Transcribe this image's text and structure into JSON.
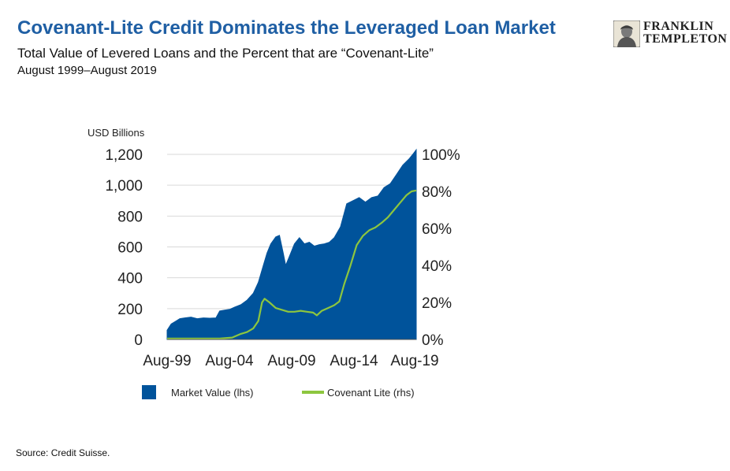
{
  "header": {
    "title": "Covenant-Lite Credit Dominates the Leveraged Loan Market",
    "subtitle": "Total Value of Levered Loans and the Percent that are “Covenant-Lite”",
    "date_range": "August 1999–August 2019"
  },
  "logo": {
    "line1": "FRANKLIN",
    "line2": "TEMPLETON",
    "icon": "franklin-portrait-icon"
  },
  "source": "Source: Credit Suisse.",
  "colors": {
    "market_value": "#00539b",
    "covenant_lite": "#8dc63f",
    "gridline": "#d9d9d9",
    "title": "#1f5fa4"
  },
  "chart_data": {
    "type": "area",
    "y_left_title": "USD Billions",
    "y_left_ticks": [
      "0",
      "200",
      "400",
      "600",
      "800",
      "1,000",
      "1,200"
    ],
    "y_left_range": [
      0,
      1200
    ],
    "y_right_ticks": [
      "0%",
      "20%",
      "40%",
      "60%",
      "80%",
      "100%"
    ],
    "y_right_range": [
      0,
      100
    ],
    "x_ticks": [
      "Aug-99",
      "Aug-04",
      "Aug-09",
      "Aug-14",
      "Aug-19"
    ],
    "x_tick_values": [
      1999.58,
      2004.58,
      2009.58,
      2014.58,
      2019.58
    ],
    "x_range": [
      1999.58,
      2019.58
    ],
    "grid": true,
    "legend_position": "bottom",
    "series": [
      {
        "name": "Market Value (lhs)",
        "axis": "left",
        "style": "area",
        "points": [
          [
            1999.58,
            60
          ],
          [
            1999.9,
            100
          ],
          [
            2000.3,
            120
          ],
          [
            2000.6,
            135
          ],
          [
            2001.0,
            140
          ],
          [
            2001.5,
            145
          ],
          [
            2002.0,
            135
          ],
          [
            2002.5,
            140
          ],
          [
            2003.0,
            138
          ],
          [
            2003.5,
            140
          ],
          [
            2003.8,
            185
          ],
          [
            2004.2,
            190
          ],
          [
            2004.6,
            195
          ],
          [
            2005.0,
            210
          ],
          [
            2005.5,
            225
          ],
          [
            2006.0,
            255
          ],
          [
            2006.5,
            300
          ],
          [
            2006.9,
            370
          ],
          [
            2007.3,
            480
          ],
          [
            2007.6,
            560
          ],
          [
            2007.9,
            620
          ],
          [
            2008.3,
            665
          ],
          [
            2008.6,
            675
          ],
          [
            2008.9,
            560
          ],
          [
            2009.1,
            480
          ],
          [
            2009.4,
            540
          ],
          [
            2009.8,
            620
          ],
          [
            2010.2,
            660
          ],
          [
            2010.6,
            620
          ],
          [
            2011.0,
            630
          ],
          [
            2011.4,
            605
          ],
          [
            2011.8,
            615
          ],
          [
            2012.2,
            620
          ],
          [
            2012.6,
            630
          ],
          [
            2013.0,
            660
          ],
          [
            2013.5,
            730
          ],
          [
            2014.0,
            880
          ],
          [
            2014.5,
            900
          ],
          [
            2015.0,
            920
          ],
          [
            2015.5,
            890
          ],
          [
            2016.0,
            920
          ],
          [
            2016.5,
            930
          ],
          [
            2017.0,
            985
          ],
          [
            2017.5,
            1010
          ],
          [
            2018.0,
            1070
          ],
          [
            2018.5,
            1130
          ],
          [
            2019.0,
            1170
          ],
          [
            2019.3,
            1200
          ],
          [
            2019.58,
            1230
          ]
        ]
      },
      {
        "name": "Covenant Lite (rhs)",
        "axis": "right",
        "style": "line",
        "points": [
          [
            1999.58,
            0.5
          ],
          [
            2003.8,
            0.5
          ],
          [
            2004.8,
            1.0
          ],
          [
            2005.5,
            3.0
          ],
          [
            2006.0,
            4.0
          ],
          [
            2006.5,
            6.0
          ],
          [
            2006.9,
            10.0
          ],
          [
            2007.2,
            20.0
          ],
          [
            2007.4,
            22.0
          ],
          [
            2007.8,
            20.0
          ],
          [
            2008.3,
            17.0
          ],
          [
            2008.8,
            16.0
          ],
          [
            2009.3,
            15.0
          ],
          [
            2009.8,
            15.0
          ],
          [
            2010.3,
            15.5
          ],
          [
            2010.8,
            15.0
          ],
          [
            2011.3,
            14.5
          ],
          [
            2011.6,
            13.0
          ],
          [
            2012.0,
            15.5
          ],
          [
            2012.5,
            17.0
          ],
          [
            2013.0,
            18.5
          ],
          [
            2013.4,
            20.5
          ],
          [
            2013.8,
            30.0
          ],
          [
            2014.3,
            40.0
          ],
          [
            2014.8,
            51.0
          ],
          [
            2015.3,
            56.0
          ],
          [
            2015.8,
            59.0
          ],
          [
            2016.3,
            60.5
          ],
          [
            2016.8,
            63.0
          ],
          [
            2017.3,
            66.0
          ],
          [
            2017.8,
            70.0
          ],
          [
            2018.3,
            74.0
          ],
          [
            2018.8,
            78.0
          ],
          [
            2019.2,
            80.0
          ],
          [
            2019.58,
            80.5
          ]
        ]
      }
    ]
  }
}
